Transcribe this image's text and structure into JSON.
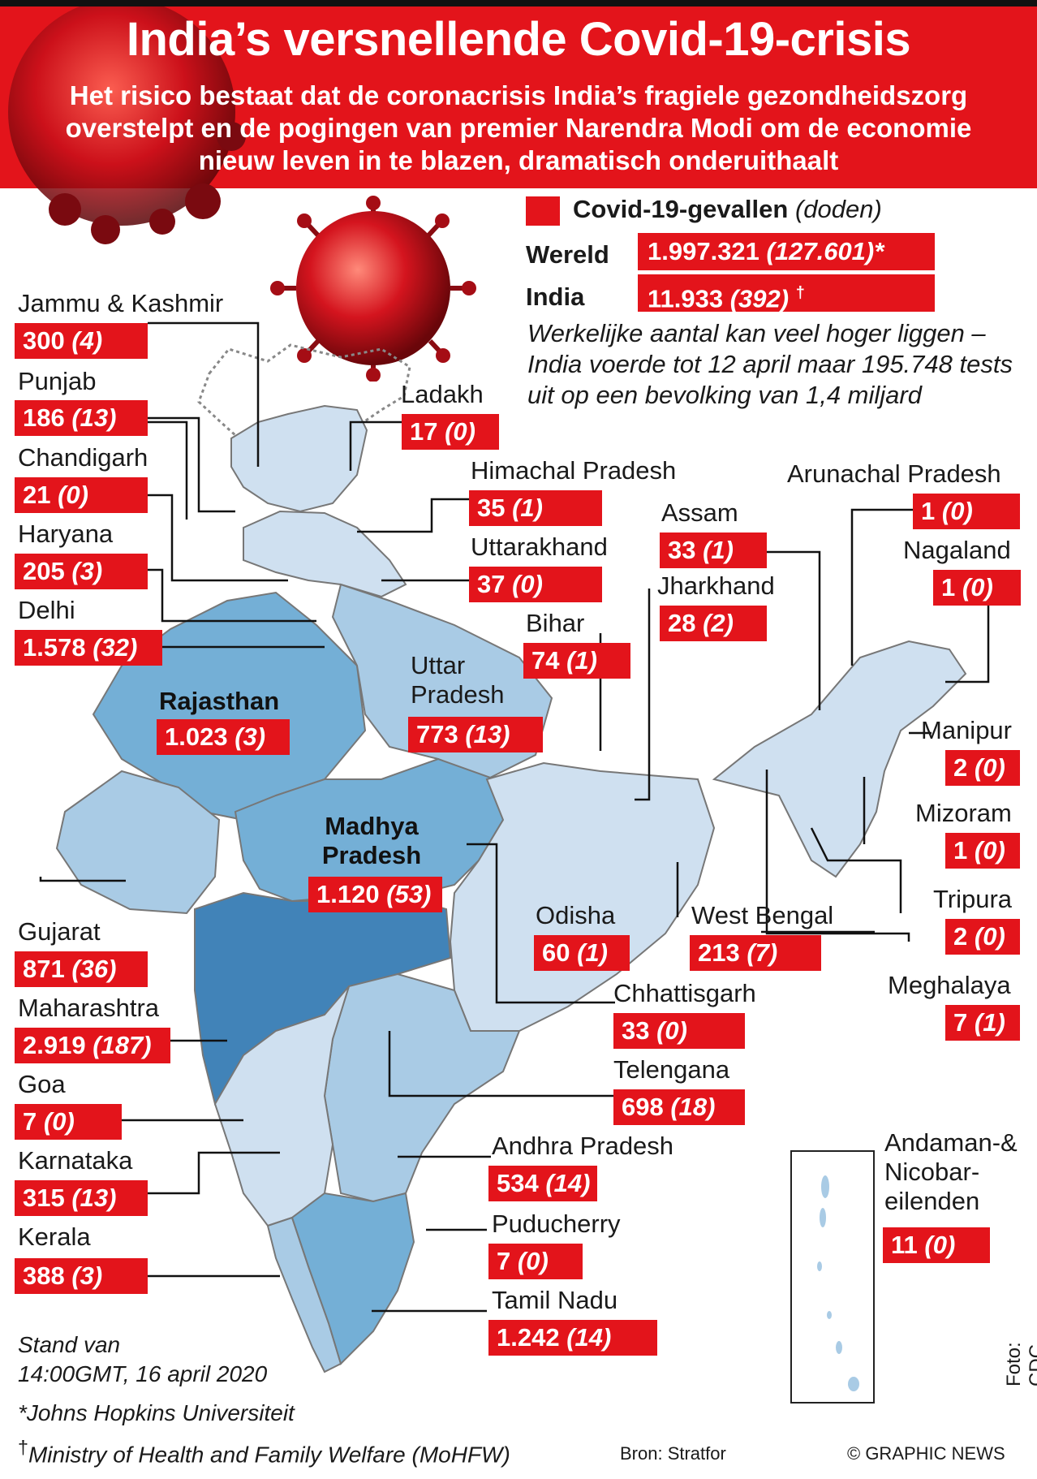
{
  "title": "India’s versnellende Covid-19-crisis",
  "subtitle": "Het risico bestaat dat de coronacrisis India’s fragiele gezondheidszorg overstelpt en de pogingen van premier Narendra Modi om de economie nieuw leven in te blazen, dramatisch onderuithaalt",
  "legend": {
    "label": "Covid-19-gevallen",
    "deaths_label": "(doden)",
    "swatch_color": "#e3141b"
  },
  "totals": {
    "world": {
      "label": "Wereld",
      "cases": "1.997.321",
      "deaths": "(127.601)*"
    },
    "india": {
      "label": "India",
      "cases": "11.933",
      "deaths": "(392)",
      "mark": "†"
    }
  },
  "note": "Werkelijke aantal kan veel hoger liggen – India voerde tot 12 april maar 195.748 tests uit op een bevolking van 1,4 miljard",
  "states": [
    {
      "name": "Jammu & Kashmir",
      "cases": "300",
      "deaths": "(4)"
    },
    {
      "name": "Punjab",
      "cases": "186",
      "deaths": "(13)"
    },
    {
      "name": "Chandigarh",
      "cases": "21",
      "deaths": "(0)"
    },
    {
      "name": "Haryana",
      "cases": "205",
      "deaths": "(3)"
    },
    {
      "name": "Delhi",
      "cases": "1.578",
      "deaths": "(32)"
    },
    {
      "name": "Gujarat",
      "cases": "871",
      "deaths": "(36)"
    },
    {
      "name": "Maharashtra",
      "cases": "2.919",
      "deaths": "(187)"
    },
    {
      "name": "Goa",
      "cases": "7",
      "deaths": "(0)"
    },
    {
      "name": "Karnataka",
      "cases": "315",
      "deaths": "(13)"
    },
    {
      "name": "Kerala",
      "cases": "388",
      "deaths": "(3)"
    },
    {
      "name": "Ladakh",
      "cases": "17",
      "deaths": "(0)"
    },
    {
      "name": "Himachal Pradesh",
      "cases": "35",
      "deaths": "(1)"
    },
    {
      "name": "Uttarakhand",
      "cases": "37",
      "deaths": "(0)"
    },
    {
      "name": "Uttar Pradesh",
      "cases": "773",
      "deaths": "(13)"
    },
    {
      "name": "Rajasthan",
      "cases": "1.023",
      "deaths": "(3)"
    },
    {
      "name": "Madhya Pradesh",
      "cases": "1.120",
      "deaths": "(53)"
    },
    {
      "name": "Bihar",
      "cases": "74",
      "deaths": "(1)"
    },
    {
      "name": "Jharkhand",
      "cases": "28",
      "deaths": "(2)"
    },
    {
      "name": "Assam",
      "cases": "33",
      "deaths": "(1)"
    },
    {
      "name": "Arunachal Pradesh",
      "cases": "1",
      "deaths": "(0)"
    },
    {
      "name": "Nagaland",
      "cases": "1",
      "deaths": "(0)"
    },
    {
      "name": "Manipur",
      "cases": "2",
      "deaths": "(0)"
    },
    {
      "name": "Mizoram",
      "cases": "1",
      "deaths": "(0)"
    },
    {
      "name": "Tripura",
      "cases": "2",
      "deaths": "(0)"
    },
    {
      "name": "Meghalaya",
      "cases": "7",
      "deaths": "(1)"
    },
    {
      "name": "Odisha",
      "cases": "60",
      "deaths": "(1)"
    },
    {
      "name": "West Bengal",
      "cases": "213",
      "deaths": "(7)"
    },
    {
      "name": "Chhattisgarh",
      "cases": "33",
      "deaths": "(0)"
    },
    {
      "name": "Telengana",
      "cases": "698",
      "deaths": "(18)"
    },
    {
      "name": "Andhra Pradesh",
      "cases": "534",
      "deaths": "(14)"
    },
    {
      "name": "Puducherry",
      "cases": "7",
      "deaths": "(0)"
    },
    {
      "name": "Tamil Nadu",
      "cases": "1.242",
      "deaths": "(14)"
    },
    {
      "name": "Andaman-& Nicobar-eilenden",
      "cases": "11",
      "deaths": "(0)"
    }
  ],
  "map_colors": {
    "lightest": "#cfe0f0",
    "light": "#a9cbe5",
    "medium": "#74afd6",
    "dark": "#4183b8"
  },
  "footer": {
    "date_line1": "Stand van",
    "date_line2": "14:00GMT, 16 april 2020",
    "source_note1": "*Johns Hopkins Universiteit",
    "source_note2": "Ministry of Health and Family Welfare (MoHFW)",
    "dagger": "†",
    "source": "Bron: Stratfor",
    "copyright": "© GRAPHIC NEWS",
    "photo": "Foto: CDC"
  }
}
